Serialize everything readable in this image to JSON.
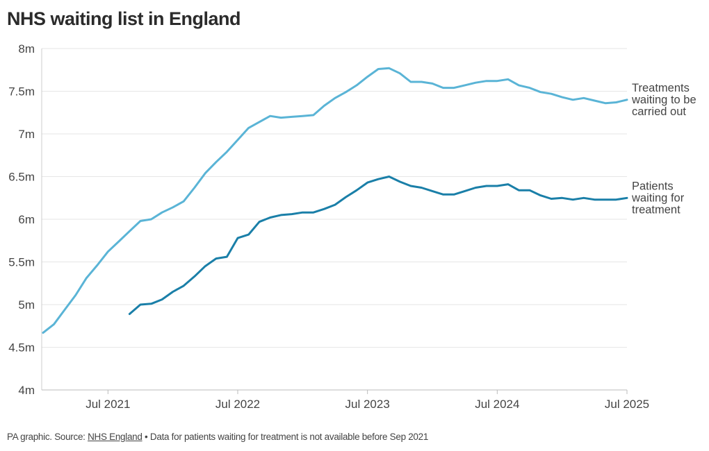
{
  "title": "NHS waiting list in England",
  "footer": {
    "prefix": "PA graphic. Source: ",
    "source_link": "NHS England",
    "note": " • Data for patients waiting for treatment is not available before Sep 2021"
  },
  "chart_data": {
    "type": "line",
    "title": "NHS waiting list in England",
    "xlabel": "",
    "ylabel": "",
    "ylim": [
      4,
      8
    ],
    "yticks": [
      4,
      4.5,
      5,
      5.5,
      6,
      6.5,
      7,
      7.5,
      8
    ],
    "ytick_labels": [
      "4m",
      "4.5m",
      "5m",
      "5.5m",
      "6m",
      "6.5m",
      "7m",
      "7.5m",
      "8m"
    ],
    "x_start": "Jan 2021",
    "x_end": "Jul 2025",
    "xticks": [
      {
        "label": "Jul 2021",
        "month_index": 6
      },
      {
        "label": "Jul 2022",
        "month_index": 18
      },
      {
        "label": "Jul 2023",
        "month_index": 30
      },
      {
        "label": "Jul 2024",
        "month_index": 42
      },
      {
        "label": "Jul 2025",
        "month_index": 54
      }
    ],
    "grid": true,
    "series": [
      {
        "name": "Treatments waiting to be carried out",
        "label_lines": [
          "Treatments",
          "waiting to be",
          "carried out"
        ],
        "color": "#5ab4d6",
        "start_month_index": 0,
        "values": [
          4.67,
          4.77,
          4.94,
          5.11,
          5.31,
          5.46,
          5.62,
          5.74,
          5.86,
          5.98,
          6.0,
          6.08,
          6.14,
          6.21,
          6.37,
          6.54,
          6.67,
          6.79,
          6.93,
          7.07,
          7.14,
          7.21,
          7.19,
          7.2,
          7.21,
          7.22,
          7.33,
          7.42,
          7.49,
          7.57,
          7.67,
          7.76,
          7.77,
          7.71,
          7.61,
          7.61,
          7.59,
          7.54,
          7.54,
          7.57,
          7.6,
          7.62,
          7.62,
          7.64,
          7.57,
          7.54,
          7.49,
          7.47,
          7.43,
          7.4,
          7.42,
          7.39,
          7.36,
          7.37,
          7.4
        ]
      },
      {
        "name": "Patients waiting for treatment",
        "label_lines": [
          "Patients",
          "waiting for",
          "treatment"
        ],
        "color": "#1a7fa8",
        "start_month_index": 8,
        "values": [
          4.89,
          5.0,
          5.01,
          5.06,
          5.15,
          5.22,
          5.33,
          5.45,
          5.54,
          5.56,
          5.78,
          5.82,
          5.97,
          6.02,
          6.05,
          6.06,
          6.08,
          6.08,
          6.12,
          6.17,
          6.26,
          6.34,
          6.43,
          6.47,
          6.5,
          6.44,
          6.39,
          6.37,
          6.33,
          6.29,
          6.29,
          6.33,
          6.37,
          6.39,
          6.39,
          6.41,
          6.34,
          6.34,
          6.28,
          6.24,
          6.25,
          6.23,
          6.25,
          6.23,
          6.23,
          6.23,
          6.25
        ]
      }
    ]
  }
}
